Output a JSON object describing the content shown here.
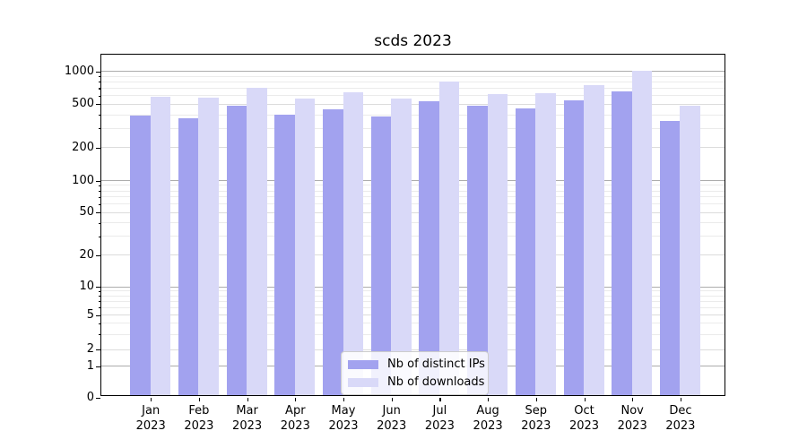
{
  "title": "scds 2023",
  "chart_data": {
    "type": "bar",
    "title": "scds 2023",
    "categories": [
      {
        "month": "Jan",
        "year": "2023"
      },
      {
        "month": "Feb",
        "year": "2023"
      },
      {
        "month": "Mar",
        "year": "2023"
      },
      {
        "month": "Apr",
        "year": "2023"
      },
      {
        "month": "May",
        "year": "2023"
      },
      {
        "month": "Jun",
        "year": "2023"
      },
      {
        "month": "Jul",
        "year": "2023"
      },
      {
        "month": "Aug",
        "year": "2023"
      },
      {
        "month": "Sep",
        "year": "2023"
      },
      {
        "month": "Oct",
        "year": "2023"
      },
      {
        "month": "Nov",
        "year": "2023"
      },
      {
        "month": "Dec",
        "year": "2023"
      }
    ],
    "series": [
      {
        "name": "Nb of distinct IPs",
        "color": "#a2a2ef",
        "values": [
          390,
          370,
          480,
          400,
          445,
          385,
          525,
          480,
          455,
          540,
          650,
          350
        ]
      },
      {
        "name": "Nb of downloads",
        "color": "#d9d9f8",
        "values": [
          580,
          565,
          700,
          555,
          635,
          555,
          800,
          610,
          620,
          740,
          1000,
          480
        ]
      }
    ],
    "y_axis": {
      "scale": "symlog",
      "range": [
        0,
        1000
      ],
      "ticks": [
        0,
        1,
        2,
        5,
        10,
        20,
        50,
        100,
        200,
        500,
        1000
      ],
      "minor_ticks": [
        3,
        4,
        6,
        7,
        8,
        9,
        30,
        40,
        60,
        70,
        80,
        90,
        300,
        400,
        600,
        700,
        800,
        900
      ]
    },
    "grid": true,
    "legend_position": "lower center inside axes"
  },
  "legend": {
    "items": [
      {
        "label": "Nb of distinct IPs",
        "color": "#a2a2ef"
      },
      {
        "label": "Nb of downloads",
        "color": "#d9d9f8"
      }
    ]
  },
  "colors": {
    "grid_major": "#adadad",
    "grid_labeled_minor": "#dcdcdc",
    "grid_minor": "#ebebeb",
    "axis": "#000000",
    "legend_border": "#cccccc"
  }
}
